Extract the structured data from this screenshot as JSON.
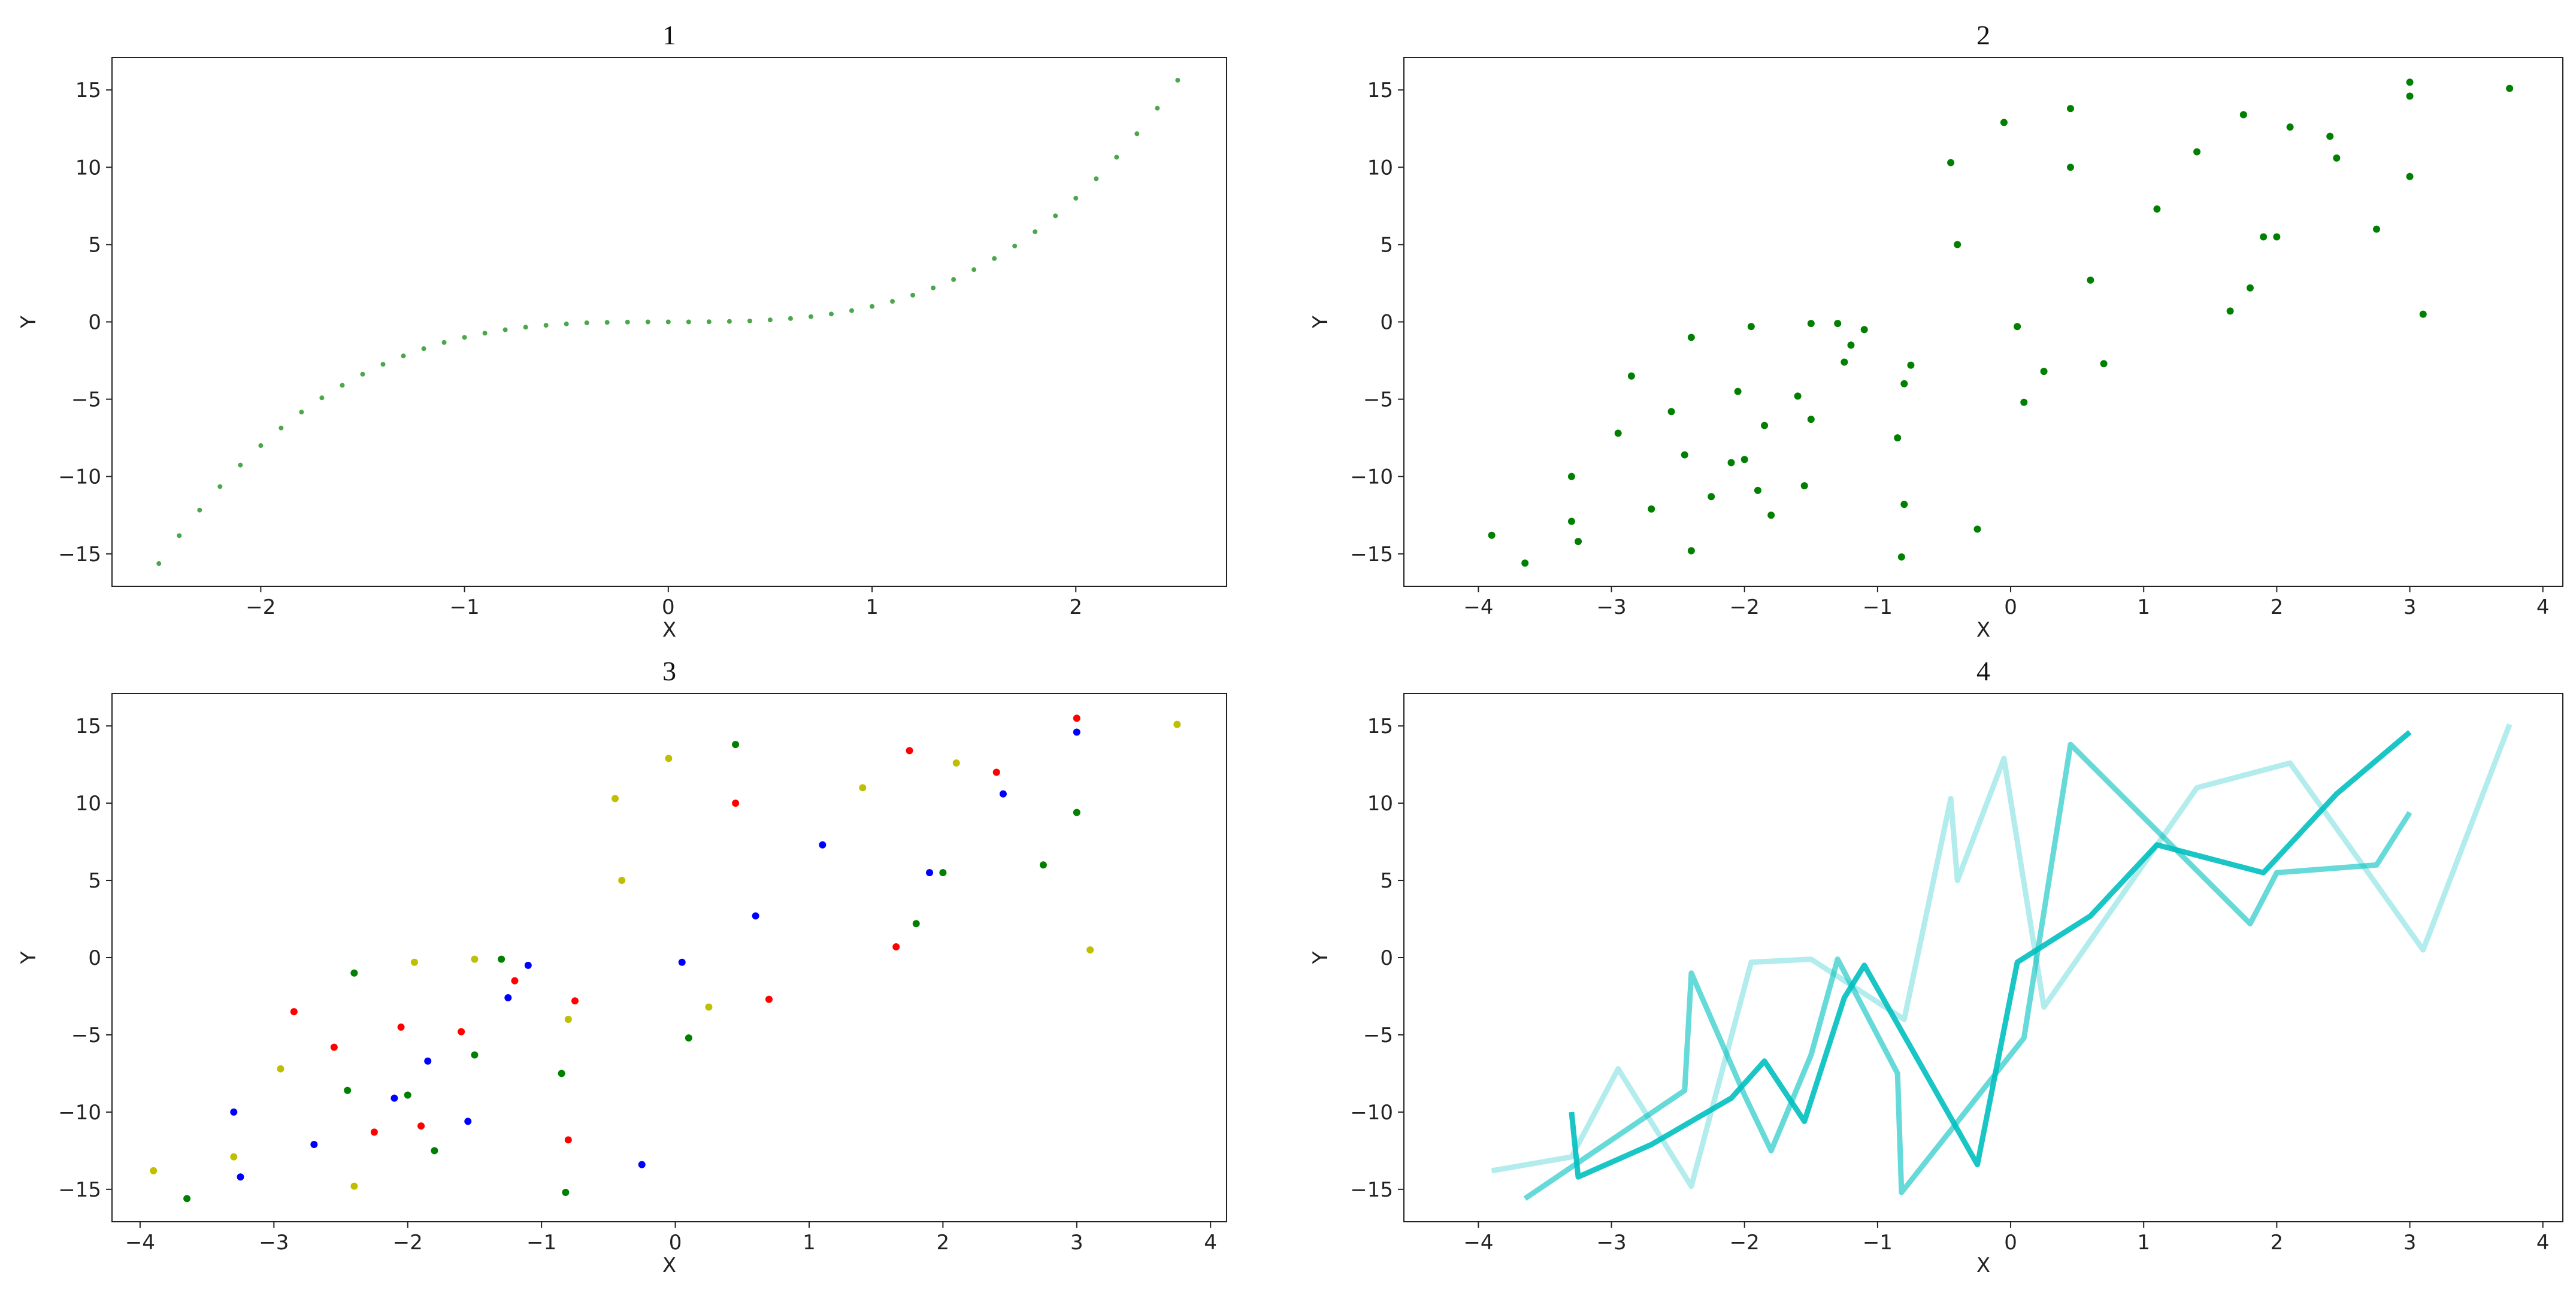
{
  "chart_data": [
    {
      "type": "scatter",
      "title": "1",
      "xlabel": "X",
      "ylabel": "Y",
      "xlim": [
        -2.73,
        2.74
      ],
      "ylim": [
        -17.1,
        17.1
      ],
      "xticks": [
        {
          "value": -2,
          "label": "−2"
        },
        {
          "value": -1,
          "label": "−1"
        },
        0,
        1,
        2
      ],
      "yticks": [
        {
          "value": -15,
          "label": "−15"
        },
        {
          "value": -10,
          "label": "−10"
        },
        {
          "value": -5,
          "label": "−5"
        },
        0,
        5,
        10,
        15
      ],
      "series": [
        {
          "color": "#008000",
          "alpha": 0.7,
          "x": [
            -2.5,
            -2.4,
            -2.3,
            -2.2,
            -2.1,
            -2.0,
            -1.9,
            -1.8,
            -1.7,
            -1.6,
            -1.5,
            -1.4,
            -1.3,
            -1.2,
            -1.1,
            -1.0,
            -0.9,
            -0.8,
            -0.7,
            -0.6,
            -0.5,
            -0.4,
            -0.3,
            -0.2,
            -0.1,
            0,
            0.1,
            0.2,
            0.3,
            0.4,
            0.5,
            0.6,
            0.7,
            0.8,
            0.9,
            1.0,
            1.1,
            1.2,
            1.3,
            1.4,
            1.5,
            1.6,
            1.7,
            1.8,
            1.9,
            2.0,
            2.1,
            2.2,
            2.3,
            2.4,
            2.5
          ],
          "values": [
            -15.63,
            -13.82,
            -12.17,
            -10.65,
            -9.26,
            -8,
            -6.86,
            -5.83,
            -4.91,
            -4.1,
            -3.38,
            -2.74,
            -2.2,
            -1.73,
            -1.33,
            -1,
            -0.73,
            -0.51,
            -0.34,
            -0.22,
            -0.13,
            -0.06,
            -0.03,
            -0.01,
            0,
            0,
            0,
            0.01,
            0.03,
            0.06,
            0.13,
            0.22,
            0.34,
            0.51,
            0.73,
            1,
            1.33,
            1.73,
            2.2,
            2.74,
            3.38,
            4.1,
            4.91,
            5.83,
            6.86,
            8,
            9.26,
            10.65,
            12.17,
            13.82,
            15.63
          ]
        }
      ]
    },
    {
      "type": "scatter",
      "title": "2",
      "xlabel": "X",
      "ylabel": "Y",
      "xlim": [
        -4.56,
        4.15
      ],
      "ylim": [
        -17.1,
        17.1
      ],
      "xticks": [
        {
          "value": -4,
          "label": "−4"
        },
        {
          "value": -3,
          "label": "−3"
        },
        {
          "value": -2,
          "label": "−2"
        },
        {
          "value": -1,
          "label": "−1"
        },
        0,
        1,
        2,
        3,
        4
      ],
      "yticks": [
        {
          "value": -15,
          "label": "−15"
        },
        {
          "value": -10,
          "label": "−10"
        },
        {
          "value": -5,
          "label": "−5"
        },
        0,
        5,
        10,
        15
      ],
      "series": [
        {
          "color": "#008000",
          "alpha": 1,
          "x": [
            -2.85,
            -2.55,
            -2.25,
            -2.05,
            -1.9,
            -1.6,
            -1.2,
            -0.75,
            -0.8,
            0.45,
            0.7,
            1.75,
            1.65,
            2.4,
            3,
            -3.65,
            -2.45,
            -2.4,
            -2.0,
            -1.8,
            -1.5,
            -1.3,
            -0.85,
            -0.82,
            0.1,
            0.45,
            1.8,
            2.0,
            2.75,
            3.0,
            -3.3,
            -3.25,
            -2.7,
            -2.1,
            -1.85,
            -1.55,
            -1.25,
            -1.1,
            -0.25,
            0.05,
            0.6,
            1.1,
            1.9,
            2.45,
            3.0,
            -3.9,
            -3.3,
            -2.95,
            -2.4,
            -1.95,
            -1.5,
            -0.8,
            -0.45,
            -0.4,
            -0.05,
            0.25,
            1.4,
            2.1,
            3.1,
            3.75
          ],
          "values": [
            -3.5,
            -5.8,
            -11.3,
            -4.5,
            -10.9,
            -4.8,
            -1.5,
            -2.8,
            -11.8,
            10,
            -2.7,
            13.4,
            0.7,
            12,
            15.5,
            -15.6,
            -8.6,
            -1,
            -8.9,
            -12.5,
            -6.3,
            -0.1,
            -7.5,
            -15.2,
            -5.2,
            13.8,
            2.2,
            5.5,
            6,
            9.4,
            -10,
            -14.2,
            -12.1,
            -9.1,
            -6.7,
            -10.6,
            -2.6,
            -0.5,
            -13.4,
            -0.3,
            2.7,
            7.3,
            5.5,
            10.6,
            14.6,
            -13.8,
            -12.9,
            -7.2,
            -14.8,
            -0.3,
            -0.1,
            -4,
            10.3,
            5,
            12.9,
            -3.2,
            11,
            12.6,
            0.5,
            15.1
          ]
        }
      ]
    },
    {
      "type": "scatter",
      "title": "3",
      "xlabel": "X",
      "ylabel": "Y",
      "xlim": [
        -4.21,
        4.12
      ],
      "ylim": [
        -17.1,
        17.1
      ],
      "xticks": [
        {
          "value": -4,
          "label": "−4"
        },
        {
          "value": -3,
          "label": "−3"
        },
        {
          "value": -2,
          "label": "−2"
        },
        {
          "value": -1,
          "label": "−1"
        },
        0,
        1,
        2,
        3,
        4
      ],
      "yticks": [
        {
          "value": -15,
          "label": "−15"
        },
        {
          "value": -10,
          "label": "−10"
        },
        {
          "value": -5,
          "label": "−5"
        },
        0,
        5,
        10,
        15
      ],
      "series": [
        {
          "color": "#ff0000",
          "alpha": 1,
          "x": [
            -2.85,
            -2.55,
            -2.25,
            -2.05,
            -1.9,
            -1.6,
            -1.2,
            -0.75,
            -0.8,
            0.45,
            0.7,
            1.75,
            1.65,
            2.4,
            3
          ],
          "values": [
            -3.5,
            -5.8,
            -11.3,
            -4.5,
            -10.9,
            -4.8,
            -1.5,
            -2.8,
            -11.8,
            10,
            -2.7,
            13.4,
            0.7,
            12,
            15.5
          ]
        },
        {
          "color": "#008000",
          "alpha": 1,
          "x": [
            -3.65,
            -2.45,
            -2.4,
            -2.0,
            -1.8,
            -1.5,
            -1.3,
            -0.85,
            -0.82,
            0.1,
            0.45,
            1.8,
            2.0,
            2.75,
            3.0
          ],
          "values": [
            -15.6,
            -8.6,
            -1,
            -8.9,
            -12.5,
            -6.3,
            -0.1,
            -7.5,
            -15.2,
            -5.2,
            13.8,
            2.2,
            5.5,
            6,
            9.4
          ]
        },
        {
          "color": "#0000ff",
          "alpha": 1,
          "x": [
            -3.3,
            -3.25,
            -2.7,
            -2.1,
            -1.85,
            -1.55,
            -1.25,
            -1.1,
            -0.25,
            0.05,
            0.6,
            1.1,
            1.9,
            2.45,
            3.0
          ],
          "values": [
            -10,
            -14.2,
            -12.1,
            -9.1,
            -6.7,
            -10.6,
            -2.6,
            -0.5,
            -13.4,
            -0.3,
            2.7,
            7.3,
            5.5,
            10.6,
            14.6
          ]
        },
        {
          "color": "#bfbf00",
          "alpha": 1,
          "x": [
            -3.9,
            -3.3,
            -2.95,
            -2.4,
            -1.95,
            -1.5,
            -0.8,
            -0.45,
            -0.4,
            -0.05,
            0.25,
            1.4,
            2.1,
            3.1,
            3.75
          ],
          "values": [
            -13.8,
            -12.9,
            -7.2,
            -14.8,
            -0.3,
            -0.1,
            -4,
            10.3,
            5,
            12.9,
            -3.2,
            11,
            12.6,
            0.5,
            15.1
          ]
        }
      ]
    },
    {
      "type": "line",
      "title": "4",
      "xlabel": "X",
      "ylabel": "Y",
      "xlim": [
        -4.56,
        4.15
      ],
      "ylim": [
        -17.1,
        17.1
      ],
      "xticks": [
        {
          "value": -4,
          "label": "−4"
        },
        {
          "value": -3,
          "label": "−3"
        },
        {
          "value": -2,
          "label": "−2"
        },
        {
          "value": -1,
          "label": "−1"
        },
        0,
        1,
        2,
        3,
        4
      ],
      "yticks": [
        {
          "value": -15,
          "label": "−15"
        },
        {
          "value": -10,
          "label": "−10"
        },
        {
          "value": -5,
          "label": "−5"
        },
        0,
        5,
        10,
        15
      ],
      "series": [
        {
          "color": "#00bfbf",
          "alpha": 0.3,
          "x": [
            -3.9,
            -3.3,
            -2.95,
            -2.4,
            -1.95,
            -1.5,
            -0.8,
            -0.45,
            -0.4,
            -0.05,
            0.25,
            1.4,
            2.1,
            3.1,
            3.75
          ],
          "values": [
            -13.8,
            -12.9,
            -7.2,
            -14.8,
            -0.3,
            -0.1,
            -4,
            10.3,
            5,
            12.9,
            -3.2,
            11,
            12.6,
            0.5,
            15.1
          ]
        },
        {
          "color": "#00bfbf",
          "alpha": 0.6,
          "x": [
            -3.65,
            -2.45,
            -2.4,
            -2.0,
            -1.8,
            -1.5,
            -1.3,
            -0.85,
            -0.82,
            0.1,
            0.45,
            1.8,
            2.0,
            2.75,
            3.0
          ],
          "values": [
            -15.6,
            -8.6,
            -1,
            -8.9,
            -12.5,
            -6.3,
            -0.1,
            -7.5,
            -15.2,
            -5.2,
            13.8,
            2.2,
            5.5,
            6,
            9.4
          ]
        },
        {
          "color": "#00bfbf",
          "alpha": 0.9,
          "x": [
            -3.3,
            -3.25,
            -2.7,
            -2.1,
            -1.85,
            -1.55,
            -1.25,
            -1.1,
            -0.25,
            0.05,
            0.6,
            1.1,
            1.9,
            2.45,
            3.0
          ],
          "values": [
            -10,
            -14.2,
            -12.1,
            -9.1,
            -6.7,
            -10.6,
            -2.6,
            -0.5,
            -13.4,
            -0.3,
            2.7,
            7.3,
            5.5,
            10.6,
            14.6
          ]
        }
      ]
    }
  ]
}
